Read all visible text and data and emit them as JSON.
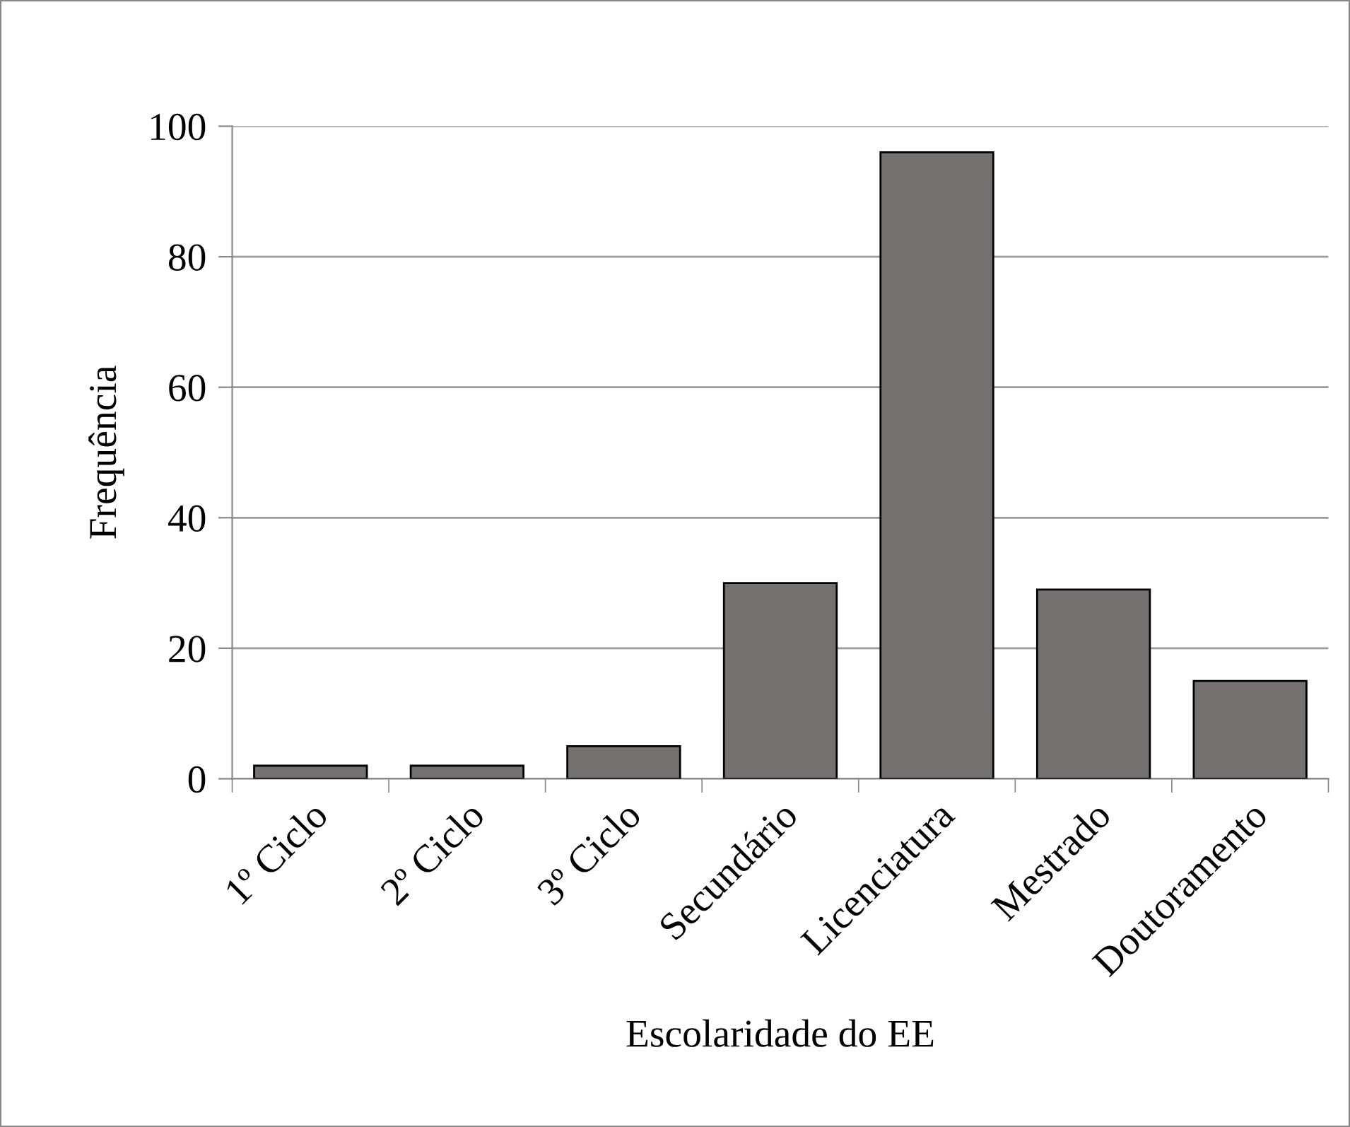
{
  "chart_data": {
    "type": "bar",
    "xlabel": "Escolaridade do EE",
    "ylabel": "Frequência",
    "categories": [
      "1º Ciclo",
      "2º Ciclo",
      "3º Ciclo",
      "Secundário",
      "Licenciatura",
      "Mestrado",
      "Doutoramento"
    ],
    "values": [
      2,
      2,
      5,
      30,
      96,
      29,
      15
    ],
    "color": "#767171",
    "ylim": [
      0,
      100
    ],
    "yticks": [
      0,
      20,
      40,
      60,
      80,
      100
    ],
    "grid": "y",
    "legend": false
  }
}
